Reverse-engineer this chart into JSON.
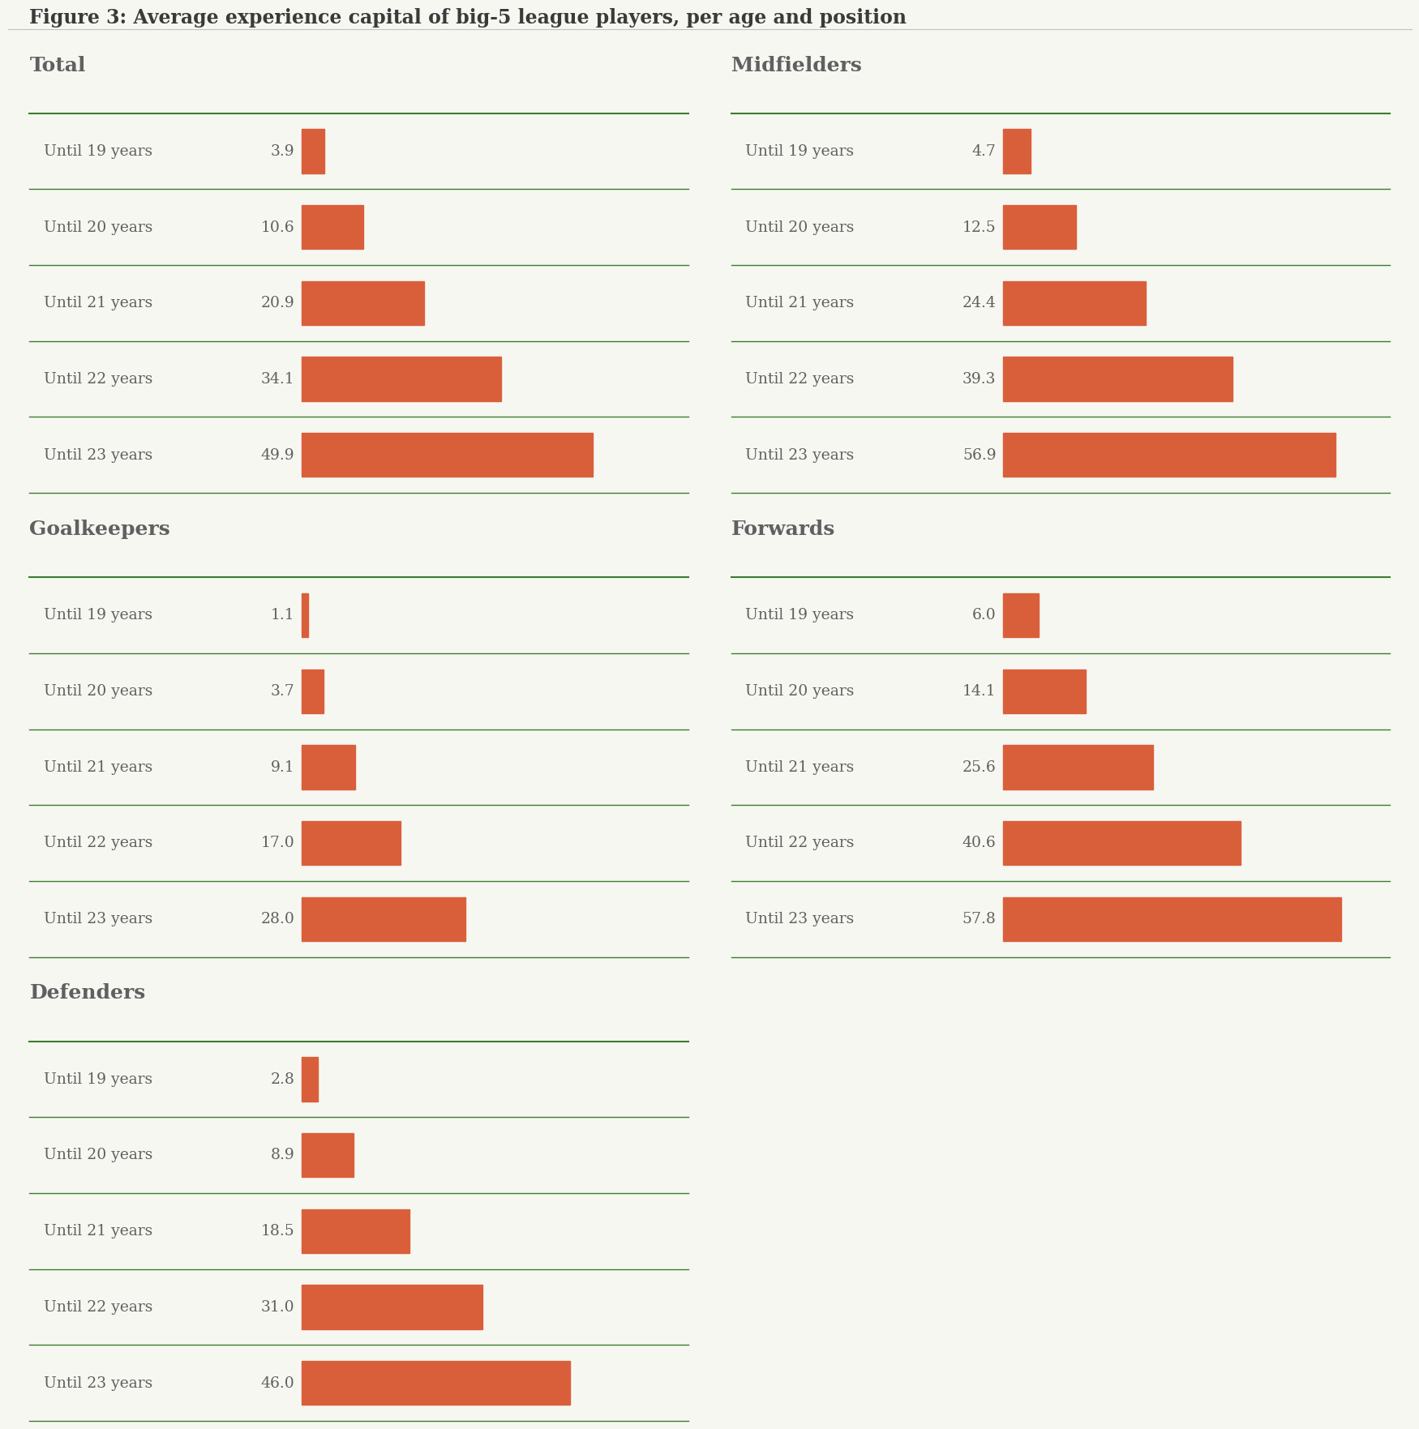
{
  "title": "Figure 3: Average experience capital of big-5 league players, per age and position",
  "background_color": "#f7f7f2",
  "bar_color": "#d95f3b",
  "text_color": "#606060",
  "title_color": "#3a3a3a",
  "green_line_color": "#3a7d2c",
  "age_labels": [
    "Until 19 years",
    "Until 20 years",
    "Until 21 years",
    "Until 22 years",
    "Until 23 years"
  ],
  "bar_scale": 65,
  "sections": [
    {
      "name": "Total",
      "values": [
        3.9,
        10.6,
        20.9,
        34.1,
        49.9
      ],
      "col": 0,
      "row": 0
    },
    {
      "name": "Goalkeepers",
      "values": [
        1.1,
        3.7,
        9.1,
        17.0,
        28.0
      ],
      "col": 0,
      "row": 1
    },
    {
      "name": "Defenders",
      "values": [
        2.8,
        8.9,
        18.5,
        31.0,
        46.0
      ],
      "col": 0,
      "row": 2
    },
    {
      "name": "Midfielders",
      "values": [
        4.7,
        12.5,
        24.4,
        39.3,
        56.9
      ],
      "col": 1,
      "row": 0
    },
    {
      "name": "Forwards",
      "values": [
        6.0,
        14.1,
        25.6,
        40.6,
        57.8
      ],
      "col": 1,
      "row": 1
    }
  ]
}
